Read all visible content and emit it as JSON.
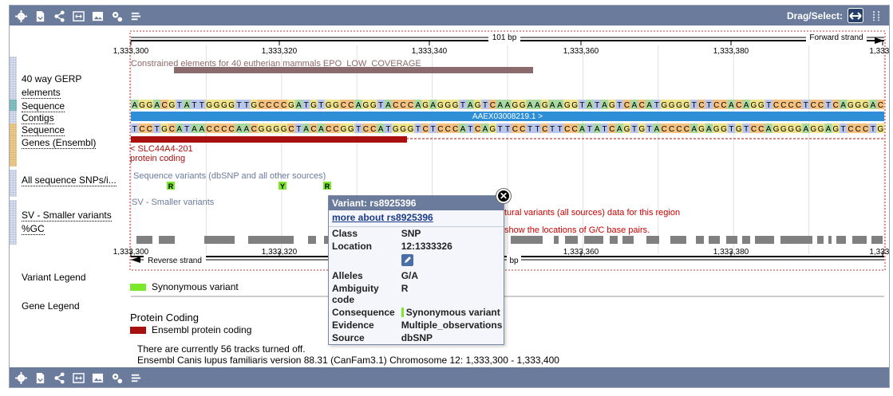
{
  "toolbar": {
    "icons": [
      "gear-icon",
      "export-icon",
      "share-icon",
      "resize-icon",
      "image-icon",
      "config-icon",
      "reset-icon"
    ],
    "drag_select_label": "Drag/Select:"
  },
  "ruler": {
    "span_label": "101 bp",
    "forward_strand": "Forward strand",
    "reverse_strand": "Reverse strand",
    "top_ticks": [
      "1,333,300",
      "1,333,320",
      "1,333,340",
      "1,333,360",
      "1,333,380",
      "1,333,4"
    ],
    "bottom_ticks": [
      "1,333,300",
      "1,333,320",
      "1,333,360",
      "1,333,380",
      "1,333,4"
    ],
    "bottom_span_label": "bp"
  },
  "tracks": {
    "gerp_label_1": "40 way GERP",
    "gerp_label_2": "elements",
    "gerp_caption": "Constrained elements for 40 eutherian mammals EPO_LOW_COVERAGE",
    "sequence_label": "Sequence",
    "contigs_label": "Contigs",
    "sequence2_label": "Sequence",
    "genes_label": "Genes (Ensembl)",
    "snps_label": "All sequence SNPs/i...",
    "sv_label": "SV - Smaller variants",
    "gc_label": "%GC",
    "forward_sequence": "AGGACGTATTGGGGTTGCCCCGATGTGGCCAGGTACCCAGAGGGTAGTCAAGGAAGAAGGTATAGTCACATGGGGTCTCCACAGGTCCCCTCCTCAGGGAC",
    "reverse_sequence": "TCCTGCATAACCCCAACGGGGCTACACCGGTCCATGGGTCTCCCATCAGTTCCTTCTTCCATATCAGTGTACCCCAGAGGTGTCCAGGGGAGGAGTCCCTG",
    "contig_name": "AAEX03008219.1 >",
    "transcript_name": "< SLC44A4-201",
    "transcript_type": "protein coding",
    "snp_caption": "Sequence variants (dbSNP and all other sources)",
    "snp_alleles": [
      "R",
      "Y",
      "R"
    ],
    "sv_caption": "SV - Smaller variants",
    "sv_message": "tural variants (all sources) data for this region",
    "gc_message": "show the locations of G/C base pairs."
  },
  "legends": {
    "variant_legend_label": "Variant Legend",
    "variant_item": "Synonymous variant",
    "gene_legend_label": "Gene Legend",
    "gene_group": "Protein Coding",
    "gene_item": "Ensembl protein coding"
  },
  "footer": {
    "tracks_off": "There are currently 56 tracks turned off.",
    "version_line": "Ensembl Canis lupus familiaris version 88.31 (CanFam3.1) Chromosome 12: 1,333,300 - 1,333,400"
  },
  "popup": {
    "title": "Variant: rs8925396",
    "more_link": "more about rs8925396",
    "class_label": "Class",
    "class_value": "SNP",
    "location_label": "Location",
    "location_value": "12:1333326",
    "alleles_label": "Alleles",
    "alleles_value": "G/A",
    "ambiguity_label": "Ambiguity code",
    "ambiguity_value": "R",
    "consequence_label": "Consequence",
    "consequence_value": "Synonymous variant",
    "evidence_label": "Evidence",
    "evidence_value": "Multiple_observations",
    "source_label": "Source",
    "source_value": "dbSNP"
  },
  "colors": {
    "toolbar": "#6b7b9c",
    "base_A": "#a7d9a1",
    "base_C": "#f5c17e",
    "base_G": "#f0e48a",
    "base_T": "#b8c6ef",
    "contig": "#2e8fd6",
    "transcript": "#a80f0f",
    "gerp": "#8b6a6e",
    "snp": "#7be82c",
    "gc": "#808080",
    "sv_text": "#cc0000"
  }
}
